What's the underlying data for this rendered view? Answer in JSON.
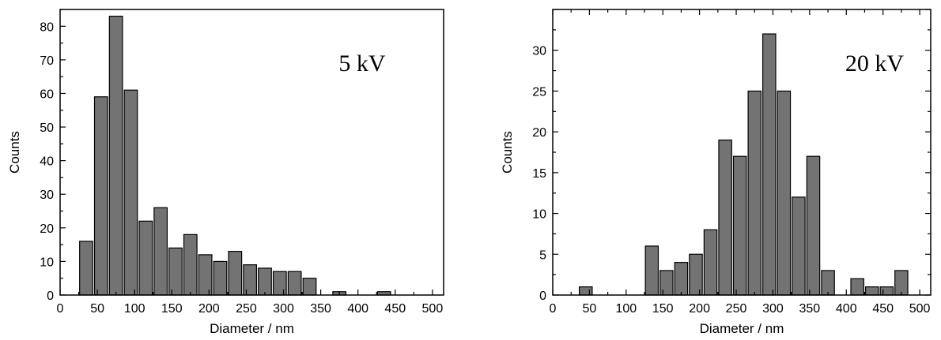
{
  "chart_data": [
    {
      "type": "bar",
      "xlabel": "Diameter / nm",
      "ylabel": "Counts",
      "annotation": "5 kV",
      "xlim": [
        0,
        515
      ],
      "ylim": [
        0,
        85
      ],
      "xticks": [
        0,
        50,
        100,
        150,
        200,
        250,
        300,
        350,
        400,
        450,
        500
      ],
      "yticks": [
        0,
        10,
        20,
        30,
        40,
        50,
        60,
        70,
        80
      ],
      "bin_width": 20,
      "x": [
        35,
        55,
        75,
        95,
        115,
        135,
        155,
        175,
        195,
        215,
        235,
        255,
        275,
        295,
        315,
        335,
        375,
        435
      ],
      "values": [
        16,
        59,
        83,
        61,
        22,
        26,
        14,
        18,
        12,
        10,
        13,
        9,
        8,
        7,
        7,
        5,
        1,
        1
      ],
      "grid": false,
      "mirror_ticks": false
    },
    {
      "type": "bar",
      "xlabel": "Diameter / nm",
      "ylabel": "Counts",
      "annotation": "20 kV",
      "xlim": [
        0,
        515
      ],
      "ylim": [
        0,
        35
      ],
      "xticks": [
        0,
        50,
        100,
        150,
        200,
        250,
        300,
        350,
        400,
        450,
        500
      ],
      "yticks": [
        0,
        5,
        10,
        15,
        20,
        25,
        30
      ],
      "bin_width": 20,
      "x": [
        45,
        135,
        155,
        175,
        195,
        215,
        235,
        255,
        275,
        295,
        315,
        335,
        355,
        375,
        415,
        435,
        455,
        475
      ],
      "values": [
        1,
        6,
        3,
        4,
        5,
        8,
        19,
        17,
        25,
        32,
        25,
        12,
        17,
        3,
        2,
        1,
        1,
        3
      ],
      "grid": false,
      "mirror_ticks": true
    }
  ]
}
